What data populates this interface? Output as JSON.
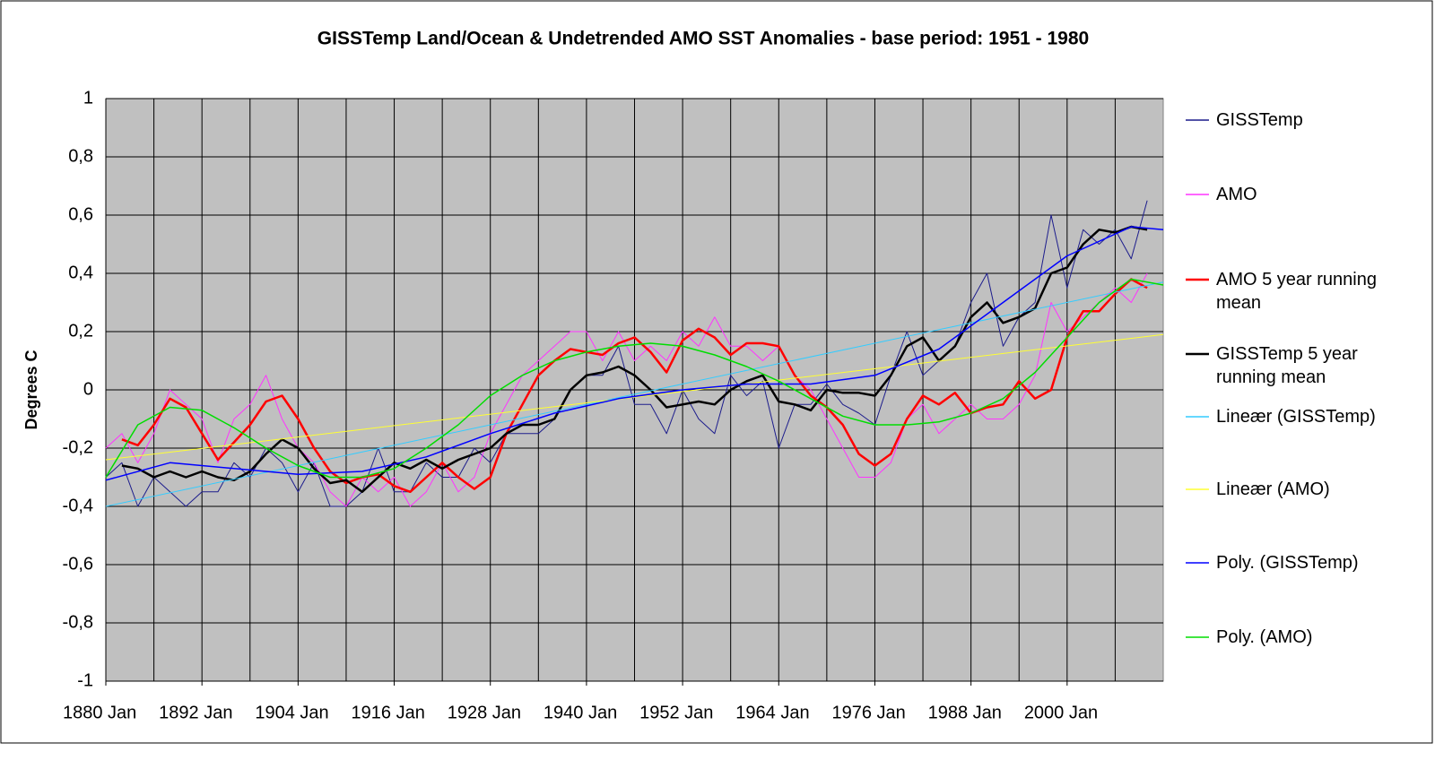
{
  "chart_data": {
    "type": "line",
    "title": "GISSTemp Land/Ocean & Undetrended AMO SST Anomalies - base period: 1951 - 1980",
    "y_label": "Degrees C",
    "xlim": [
      1880,
      2012
    ],
    "xticks": [
      {
        "value": 1880,
        "label": "1880 Jan"
      },
      {
        "value": 1892,
        "label": "1892 Jan"
      },
      {
        "value": 1904,
        "label": "1904 Jan"
      },
      {
        "value": 1916,
        "label": "1916 Jan"
      },
      {
        "value": 1928,
        "label": "1928 Jan"
      },
      {
        "value": 1940,
        "label": "1940 Jan"
      },
      {
        "value": 1952,
        "label": "1952 Jan"
      },
      {
        "value": 1964,
        "label": "1964 Jan"
      },
      {
        "value": 1976,
        "label": "1976 Jan"
      },
      {
        "value": 1988,
        "label": "1988 Jan"
      },
      {
        "value": 2000,
        "label": "2000 Jan"
      }
    ],
    "x_minor_ticks": [
      1880,
      1886,
      1892,
      1898,
      1904,
      1910,
      1916,
      1922,
      1928,
      1934,
      1940,
      1946,
      1952,
      1958,
      1964,
      1970,
      1976,
      1982,
      1988,
      1994,
      2000,
      2006
    ],
    "ylim": [
      -1,
      1
    ],
    "yticks": [
      {
        "value": -1,
        "label": "-1"
      },
      {
        "value": -0.8,
        "label": "-0,8"
      },
      {
        "value": -0.6,
        "label": "-0,6"
      },
      {
        "value": -0.4,
        "label": "-0,4"
      },
      {
        "value": -0.2,
        "label": "-0,2"
      },
      {
        "value": 0,
        "label": "0"
      },
      {
        "value": 0.2,
        "label": "0,2"
      },
      {
        "value": 0.4,
        "label": "0,4"
      },
      {
        "value": 0.6,
        "label": "0,6"
      },
      {
        "value": 0.8,
        "label": "0,8"
      },
      {
        "value": 1,
        "label": "1"
      }
    ],
    "grid": true,
    "legend": "right",
    "series": [
      {
        "name": "GISSTemp",
        "color": "#1c1c8c",
        "width": 1,
        "x": [
          1880,
          1882,
          1884,
          1886,
          1888,
          1890,
          1892,
          1894,
          1896,
          1898,
          1900,
          1902,
          1904,
          1906,
          1908,
          1910,
          1912,
          1914,
          1916,
          1918,
          1920,
          1922,
          1924,
          1926,
          1928,
          1930,
          1932,
          1934,
          1936,
          1938,
          1940,
          1942,
          1944,
          1946,
          1948,
          1950,
          1952,
          1954,
          1956,
          1958,
          1960,
          1962,
          1964,
          1966,
          1968,
          1970,
          1972,
          1974,
          1976,
          1978,
          1980,
          1982,
          1984,
          1986,
          1988,
          1990,
          1992,
          1994,
          1996,
          1998,
          2000,
          2002,
          2004,
          2006,
          2008,
          2010
        ],
        "values": [
          -0.3,
          -0.25,
          -0.4,
          -0.3,
          -0.35,
          -0.4,
          -0.35,
          -0.35,
          -0.25,
          -0.3,
          -0.2,
          -0.25,
          -0.35,
          -0.25,
          -0.4,
          -0.4,
          -0.35,
          -0.2,
          -0.35,
          -0.35,
          -0.25,
          -0.3,
          -0.3,
          -0.2,
          -0.25,
          -0.15,
          -0.15,
          -0.15,
          -0.1,
          0,
          0.05,
          0.05,
          0.15,
          -0.05,
          -0.05,
          -0.15,
          0,
          -0.1,
          -0.15,
          0.05,
          -0.02,
          0.03,
          -0.2,
          -0.05,
          -0.05,
          0.02,
          -0.05,
          -0.08,
          -0.12,
          0.05,
          0.2,
          0.05,
          0.1,
          0.15,
          0.3,
          0.4,
          0.15,
          0.25,
          0.3,
          0.6,
          0.35,
          0.55,
          0.5,
          0.55,
          0.45,
          0.65
        ]
      },
      {
        "name": "AMO",
        "color": "#ff33ff",
        "width": 1,
        "x": [
          1880,
          1882,
          1884,
          1886,
          1888,
          1890,
          1892,
          1894,
          1896,
          1898,
          1900,
          1902,
          1904,
          1906,
          1908,
          1910,
          1912,
          1914,
          1916,
          1918,
          1920,
          1922,
          1924,
          1926,
          1928,
          1930,
          1932,
          1934,
          1936,
          1938,
          1940,
          1942,
          1944,
          1946,
          1948,
          1950,
          1952,
          1954,
          1956,
          1958,
          1960,
          1962,
          1964,
          1966,
          1968,
          1970,
          1972,
          1974,
          1976,
          1978,
          1980,
          1982,
          1984,
          1986,
          1988,
          1990,
          1992,
          1994,
          1996,
          1998,
          2000,
          2002,
          2004,
          2006,
          2008,
          2010
        ],
        "values": [
          -0.2,
          -0.15,
          -0.25,
          -0.15,
          0,
          -0.05,
          -0.1,
          -0.25,
          -0.1,
          -0.05,
          0.05,
          -0.1,
          -0.2,
          -0.25,
          -0.35,
          -0.4,
          -0.3,
          -0.35,
          -0.3,
          -0.4,
          -0.35,
          -0.25,
          -0.35,
          -0.3,
          -0.15,
          -0.05,
          0.05,
          0.1,
          0.15,
          0.2,
          0.2,
          0.1,
          0.2,
          0.1,
          0.15,
          0.1,
          0.2,
          0.15,
          0.25,
          0.15,
          0.15,
          0.1,
          0.15,
          0.05,
          0,
          -0.1,
          -0.2,
          -0.3,
          -0.3,
          -0.25,
          -0.1,
          -0.05,
          -0.15,
          -0.1,
          -0.05,
          -0.1,
          -0.1,
          -0.05,
          0.05,
          0.3,
          0.2,
          0.25,
          0.3,
          0.35,
          0.3,
          0.4
        ]
      },
      {
        "name": "AMO 5 year running mean",
        "color": "#ff0000",
        "width": 2.5,
        "x": [
          1880,
          1882,
          1884,
          1886,
          1888,
          1890,
          1892,
          1894,
          1896,
          1898,
          1900,
          1902,
          1904,
          1906,
          1908,
          1910,
          1912,
          1914,
          1916,
          1918,
          1920,
          1922,
          1924,
          1926,
          1928,
          1930,
          1932,
          1934,
          1936,
          1938,
          1940,
          1942,
          1944,
          1946,
          1948,
          1950,
          1952,
          1954,
          1956,
          1958,
          1960,
          1962,
          1964,
          1966,
          1968,
          1970,
          1972,
          1974,
          1976,
          1978,
          1980,
          1982,
          1984,
          1986,
          1988,
          1990,
          1992,
          1994,
          1996,
          1998,
          2000,
          2002,
          2004,
          2006,
          2008,
          2010
        ],
        "values": [
          null,
          -0.17,
          -0.19,
          -0.12,
          -0.03,
          -0.06,
          -0.15,
          -0.24,
          -0.18,
          -0.12,
          -0.04,
          -0.02,
          -0.1,
          -0.2,
          -0.28,
          -0.32,
          -0.3,
          -0.29,
          -0.33,
          -0.35,
          -0.3,
          -0.25,
          -0.3,
          -0.34,
          -0.3,
          -0.15,
          -0.05,
          0.05,
          0.1,
          0.14,
          0.13,
          0.12,
          0.16,
          0.18,
          0.13,
          0.06,
          0.17,
          0.21,
          0.18,
          0.12,
          0.16,
          0.16,
          0.15,
          0.05,
          -0.02,
          -0.06,
          -0.12,
          -0.22,
          -0.26,
          -0.22,
          -0.1,
          -0.02,
          -0.05,
          -0.01,
          -0.08,
          -0.06,
          -0.05,
          0.03,
          -0.03,
          0,
          0.18,
          0.27,
          0.27,
          0.33,
          0.38,
          0.35
        ]
      },
      {
        "name": "GISSTemp 5 year running mean",
        "color": "#000000",
        "width": 2.5,
        "x": [
          1880,
          1882,
          1884,
          1886,
          1888,
          1890,
          1892,
          1894,
          1896,
          1898,
          1900,
          1902,
          1904,
          1906,
          1908,
          1910,
          1912,
          1914,
          1916,
          1918,
          1920,
          1922,
          1924,
          1926,
          1928,
          1930,
          1932,
          1934,
          1936,
          1938,
          1940,
          1942,
          1944,
          1946,
          1948,
          1950,
          1952,
          1954,
          1956,
          1958,
          1960,
          1962,
          1964,
          1966,
          1968,
          1970,
          1972,
          1974,
          1976,
          1978,
          1980,
          1982,
          1984,
          1986,
          1988,
          1990,
          1992,
          1994,
          1996,
          1998,
          2000,
          2002,
          2004,
          2006,
          2008,
          2010
        ],
        "values": [
          null,
          -0.26,
          -0.27,
          -0.3,
          -0.28,
          -0.3,
          -0.28,
          -0.3,
          -0.31,
          -0.28,
          -0.22,
          -0.17,
          -0.2,
          -0.27,
          -0.32,
          -0.31,
          -0.35,
          -0.3,
          -0.25,
          -0.27,
          -0.24,
          -0.27,
          -0.24,
          -0.22,
          -0.2,
          -0.15,
          -0.12,
          -0.12,
          -0.1,
          0,
          0.05,
          0.06,
          0.08,
          0.05,
          0,
          -0.06,
          -0.05,
          -0.04,
          -0.05,
          0,
          0.03,
          0.05,
          -0.04,
          -0.05,
          -0.07,
          0,
          -0.01,
          -0.01,
          -0.02,
          0.05,
          0.15,
          0.18,
          0.1,
          0.15,
          0.25,
          0.3,
          0.23,
          0.25,
          0.28,
          0.4,
          0.42,
          0.5,
          0.55,
          0.54,
          0.56,
          0.55
        ]
      },
      {
        "name": "Lineær (GISSTemp)",
        "color": "#33ccff",
        "width": 1,
        "x": [
          1880,
          2012
        ],
        "values": [
          -0.4,
          0.37
        ]
      },
      {
        "name": "Lineær (AMO)",
        "color": "#ffff33",
        "width": 1,
        "x": [
          1880,
          2012
        ],
        "values": [
          -0.24,
          0.19
        ]
      },
      {
        "name": "Poly. (GISSTemp)",
        "color": "#0000ff",
        "width": 1.5,
        "x": [
          1880,
          1888,
          1896,
          1904,
          1912,
          1920,
          1928,
          1936,
          1944,
          1952,
          1960,
          1968,
          1976,
          1984,
          1992,
          2000,
          2008,
          2012
        ],
        "values": [
          -0.31,
          -0.25,
          -0.27,
          -0.29,
          -0.28,
          -0.23,
          -0.15,
          -0.08,
          -0.03,
          0,
          0.02,
          0.02,
          0.05,
          0.14,
          0.3,
          0.46,
          0.56,
          0.55
        ]
      },
      {
        "name": "Poly. (AMO)",
        "color": "#00dd00",
        "width": 1.5,
        "x": [
          1880,
          1884,
          1888,
          1892,
          1896,
          1900,
          1904,
          1908,
          1912,
          1916,
          1920,
          1924,
          1928,
          1932,
          1936,
          1940,
          1944,
          1948,
          1952,
          1956,
          1960,
          1964,
          1968,
          1972,
          1976,
          1980,
          1984,
          1988,
          1992,
          1996,
          2000,
          2004,
          2008,
          2012
        ],
        "values": [
          -0.3,
          -0.12,
          -0.06,
          -0.07,
          -0.13,
          -0.2,
          -0.26,
          -0.3,
          -0.3,
          -0.27,
          -0.2,
          -0.12,
          -0.02,
          0.05,
          0.1,
          0.13,
          0.15,
          0.16,
          0.15,
          0.12,
          0.08,
          0.03,
          -0.03,
          -0.09,
          -0.12,
          -0.12,
          -0.11,
          -0.08,
          -0.03,
          0.06,
          0.18,
          0.3,
          0.38,
          0.36
        ]
      }
    ]
  }
}
